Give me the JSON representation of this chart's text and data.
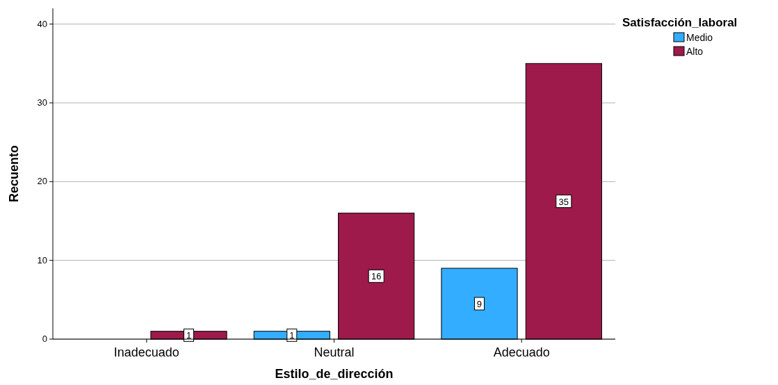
{
  "chart_data": {
    "type": "bar",
    "xlabel": "Estilo_de_dirección",
    "ylabel": "Recuento",
    "legend_title": "Satisfacción_laboral",
    "categories": [
      "Inadecuado",
      "Neutral",
      "Adecuado"
    ],
    "series": [
      {
        "name": "Medio",
        "color": "#33adff",
        "values": [
          null,
          1,
          9
        ]
      },
      {
        "name": "Alto",
        "color": "#9e1a4a",
        "values": [
          1,
          16,
          35
        ]
      }
    ],
    "ylim": [
      0,
      42
    ],
    "yticks": [
      0,
      10,
      20,
      30,
      40
    ],
    "grid": "y",
    "legend": "top right",
    "data_labels": true
  }
}
